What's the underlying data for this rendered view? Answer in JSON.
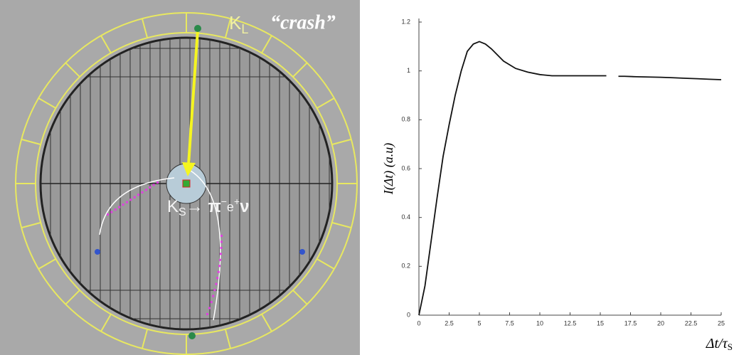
{
  "event_display": {
    "kl_label": {
      "symbol": "K",
      "sub": "L"
    },
    "crash_label": "“crash”",
    "decay_label": {
      "symbol": "K",
      "sub": "S",
      "arrow": "→ π",
      "pi_charge": "−",
      "electron": "e",
      "e_charge": "+",
      "neutrino": "ν"
    }
  },
  "chart_data": {
    "type": "line",
    "y_label": "I(Δt) (a.u)",
    "x_label": {
      "main": "Δt/τ",
      "sub": "S"
    },
    "x": [
      0,
      0.5,
      1,
      1.5,
      2,
      2.5,
      3,
      3.5,
      4,
      4.5,
      5,
      5.5,
      6,
      7,
      8,
      9,
      10,
      11,
      12,
      13,
      14,
      15,
      15.5,
      16,
      16.5,
      17,
      18,
      19,
      20,
      21,
      22,
      23,
      24,
      25
    ],
    "series": [
      {
        "color": "#111111",
        "values": [
          0,
          0.12,
          0.3,
          0.48,
          0.65,
          0.78,
          0.9,
          1.0,
          1.08,
          1.11,
          1.12,
          1.11,
          1.09,
          1.04,
          1.01,
          0.995,
          0.985,
          0.98,
          0.98,
          0.98,
          0.98,
          0.98,
          0.98,
          null,
          0.978,
          0.978,
          0.976,
          0.975,
          0.974,
          0.972,
          0.97,
          0.968,
          0.966,
          0.964
        ]
      }
    ],
    "xlim": [
      0,
      25
    ],
    "ylim": [
      0,
      1.2
    ],
    "xticks": [
      0,
      2.5,
      5,
      7.5,
      10,
      12.5,
      15,
      17.5,
      20,
      22.5,
      25
    ],
    "yticks": [
      0,
      0.2,
      0.4,
      0.6,
      0.8,
      1,
      1.2
    ]
  }
}
